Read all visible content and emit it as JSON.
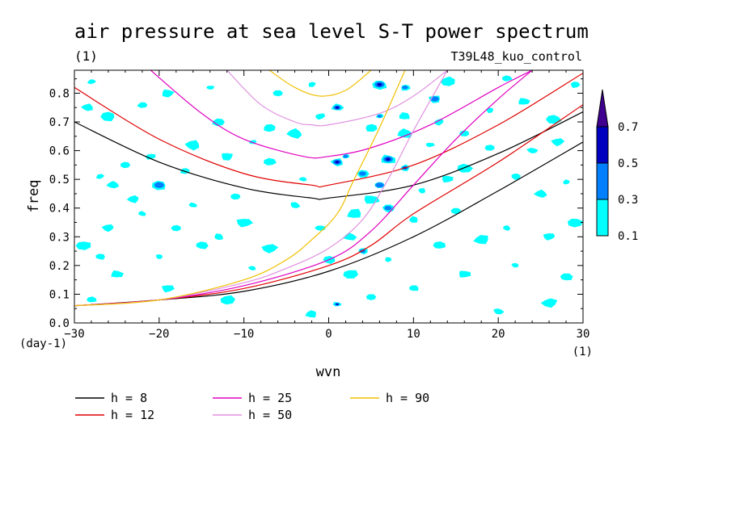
{
  "chart_data": {
    "type": "heatmap",
    "title": "air pressure at sea level S-T power spectrum",
    "subtitle_left": "(1)",
    "subtitle_right": "T39L48_kuo_control",
    "xlabel": "wvn",
    "ylabel": "freq",
    "x_unit_label": "(1)",
    "y_unit_label": "(day-1)",
    "xlim": [
      -30,
      30
    ],
    "ylim": [
      0,
      0.88
    ],
    "x_ticks": [
      -30,
      -20,
      -10,
      0,
      10,
      20,
      30
    ],
    "x_tick_labels": [
      "−30",
      "−20",
      "−10",
      "0",
      "10",
      "20",
      "30"
    ],
    "y_ticks": [
      0,
      0.1,
      0.2,
      0.3,
      0.4,
      0.5,
      0.6,
      0.7,
      0.8
    ],
    "y_tick_labels": [
      "0.0",
      "0.1",
      "0.2",
      "0.3",
      "0.4",
      "0.5",
      "0.6",
      "0.7",
      "0.8"
    ],
    "colorbar": {
      "levels": [
        0.1,
        0.3,
        0.5,
        0.7
      ],
      "labels": [
        "0.1",
        "0.3",
        "0.5",
        "0.7"
      ],
      "colors": [
        "#00ffff",
        "#0080ff",
        "#0000c0",
        "#400090"
      ]
    },
    "curves": [
      {
        "name": "h = 8",
        "h": 8,
        "color": "#000000"
      },
      {
        "name": "h = 12",
        "h": 12,
        "color": "#e00000"
      },
      {
        "name": "h = 25",
        "h": 25,
        "color": "#e000c0"
      },
      {
        "name": "h = 50",
        "h": 50,
        "color": "#e090e0"
      },
      {
        "name": "h = 90",
        "h": 90,
        "color": "#f0c000"
      }
    ],
    "curve_points": {
      "h = 8": {
        "upper": [
          [
            -30,
            0.7
          ],
          [
            -20,
            0.56
          ],
          [
            -10,
            0.47
          ],
          [
            -2,
            0.435
          ],
          [
            0,
            0.435
          ],
          [
            10,
            0.48
          ],
          [
            20,
            0.59
          ],
          [
            30,
            0.735
          ]
        ],
        "lower": [
          [
            -30,
            0.06
          ],
          [
            -20,
            0.08
          ],
          [
            -10,
            0.11
          ],
          [
            0,
            0.18
          ],
          [
            10,
            0.3
          ],
          [
            20,
            0.46
          ],
          [
            30,
            0.63
          ]
        ]
      },
      "h = 12": {
        "upper": [
          [
            -30,
            0.82
          ],
          [
            -20,
            0.64
          ],
          [
            -10,
            0.52
          ],
          [
            -2,
            0.48
          ],
          [
            0,
            0.48
          ],
          [
            10,
            0.55
          ],
          [
            20,
            0.69
          ],
          [
            30,
            0.87
          ]
        ],
        "lower": [
          [
            -30,
            0.06
          ],
          [
            -20,
            0.08
          ],
          [
            -10,
            0.12
          ],
          [
            0,
            0.2
          ],
          [
            5,
            0.27
          ],
          [
            10,
            0.38
          ],
          [
            20,
            0.56
          ],
          [
            30,
            0.76
          ]
        ]
      },
      "h = 25": {
        "upper": [
          [
            -21,
            0.88
          ],
          [
            -15,
            0.73
          ],
          [
            -10,
            0.64
          ],
          [
            -3,
            0.58
          ],
          [
            0,
            0.58
          ],
          [
            5,
            0.61
          ],
          [
            12,
            0.69
          ],
          [
            20,
            0.82
          ],
          [
            24,
            0.88
          ]
        ],
        "lower": [
          [
            -30,
            0.06
          ],
          [
            -20,
            0.08
          ],
          [
            -10,
            0.13
          ],
          [
            0,
            0.22
          ],
          [
            5,
            0.32
          ],
          [
            10,
            0.48
          ],
          [
            15,
            0.64
          ],
          [
            20,
            0.78
          ],
          [
            24,
            0.88
          ]
        ]
      },
      "h = 50": {
        "upper": [
          [
            -12,
            0.88
          ],
          [
            -8,
            0.76
          ],
          [
            -4,
            0.7
          ],
          [
            -2,
            0.69
          ],
          [
            0,
            0.69
          ],
          [
            6,
            0.73
          ],
          [
            10,
            0.79
          ],
          [
            14,
            0.88
          ]
        ],
        "lower": [
          [
            -30,
            0.06
          ],
          [
            -20,
            0.08
          ],
          [
            -10,
            0.14
          ],
          [
            -5,
            0.19
          ],
          [
            0,
            0.26
          ],
          [
            4,
            0.36
          ],
          [
            7,
            0.5
          ],
          [
            10,
            0.67
          ],
          [
            14,
            0.88
          ]
        ]
      },
      "h = 90": {
        "upper": [
          [
            -7,
            0.88
          ],
          [
            -4,
            0.82
          ],
          [
            -1,
            0.79
          ],
          [
            2,
            0.81
          ],
          [
            5,
            0.88
          ]
        ],
        "lower": [
          [
            -30,
            0.06
          ],
          [
            -20,
            0.08
          ],
          [
            -10,
            0.15
          ],
          [
            -5,
            0.22
          ],
          [
            -2,
            0.29
          ],
          [
            1,
            0.38
          ],
          [
            3,
            0.5
          ],
          [
            6,
            0.68
          ],
          [
            9,
            0.88
          ]
        ]
      }
    },
    "blobs": [
      {
        "x": -28,
        "y": 0.84,
        "l": 0
      },
      {
        "x": -28.5,
        "y": 0.75,
        "l": 0
      },
      {
        "x": -26,
        "y": 0.72,
        "l": 0
      },
      {
        "x": -22,
        "y": 0.76,
        "l": 0
      },
      {
        "x": -19,
        "y": 0.8,
        "l": 0
      },
      {
        "x": -14,
        "y": 0.82,
        "l": 0
      },
      {
        "x": -13,
        "y": 0.7,
        "l": 0
      },
      {
        "x": -16,
        "y": 0.62,
        "l": 0
      },
      {
        "x": -21,
        "y": 0.58,
        "l": 0
      },
      {
        "x": -24,
        "y": 0.55,
        "l": 0
      },
      {
        "x": -27,
        "y": 0.51,
        "l": 0
      },
      {
        "x": -25.5,
        "y": 0.48,
        "l": 0
      },
      {
        "x": -20,
        "y": 0.48,
        "l": 1
      },
      {
        "x": -17,
        "y": 0.53,
        "l": 0
      },
      {
        "x": -12,
        "y": 0.58,
        "l": 0
      },
      {
        "x": -9,
        "y": 0.63,
        "l": 0
      },
      {
        "x": -7,
        "y": 0.68,
        "l": 0
      },
      {
        "x": -4,
        "y": 0.66,
        "l": 0
      },
      {
        "x": -1,
        "y": 0.72,
        "l": 0
      },
      {
        "x": -6,
        "y": 0.8,
        "l": 0
      },
      {
        "x": -2,
        "y": 0.83,
        "l": 0
      },
      {
        "x": 1,
        "y": 0.75,
        "l": 2
      },
      {
        "x": 6,
        "y": 0.83,
        "l": 2
      },
      {
        "x": 9,
        "y": 0.82,
        "l": 1
      },
      {
        "x": 12.5,
        "y": 0.78,
        "l": 1
      },
      {
        "x": 6,
        "y": 0.72,
        "l": 1
      },
      {
        "x": 5,
        "y": 0.68,
        "l": 0
      },
      {
        "x": 9,
        "y": 0.66,
        "l": 0
      },
      {
        "x": 13,
        "y": 0.7,
        "l": 0
      },
      {
        "x": 16,
        "y": 0.66,
        "l": 0
      },
      {
        "x": 19,
        "y": 0.74,
        "l": 0
      },
      {
        "x": 23,
        "y": 0.77,
        "l": 0
      },
      {
        "x": 26.5,
        "y": 0.71,
        "l": 0
      },
      {
        "x": 29,
        "y": 0.83,
        "l": 0
      },
      {
        "x": 1,
        "y": 0.56,
        "l": 2
      },
      {
        "x": 2,
        "y": 0.58,
        "l": 1
      },
      {
        "x": 4,
        "y": 0.52,
        "l": 1
      },
      {
        "x": 7,
        "y": 0.57,
        "l": 2
      },
      {
        "x": 9,
        "y": 0.54,
        "l": 2
      },
      {
        "x": 6,
        "y": 0.48,
        "l": 1
      },
      {
        "x": 11,
        "y": 0.46,
        "l": 0
      },
      {
        "x": 14,
        "y": 0.5,
        "l": 0
      },
      {
        "x": 16,
        "y": 0.54,
        "l": 0
      },
      {
        "x": 22,
        "y": 0.51,
        "l": 0
      },
      {
        "x": 25,
        "y": 0.45,
        "l": 0
      },
      {
        "x": 28,
        "y": 0.49,
        "l": 0
      },
      {
        "x": 7,
        "y": 0.4,
        "l": 1
      },
      {
        "x": 5,
        "y": 0.43,
        "l": 0
      },
      {
        "x": 10,
        "y": 0.36,
        "l": 0
      },
      {
        "x": 15,
        "y": 0.39,
        "l": 0
      },
      {
        "x": 21,
        "y": 0.33,
        "l": 0
      },
      {
        "x": 26,
        "y": 0.3,
        "l": 0
      },
      {
        "x": 29,
        "y": 0.35,
        "l": 0
      },
      {
        "x": 4,
        "y": 0.25,
        "l": 1
      },
      {
        "x": 2.5,
        "y": 0.3,
        "l": 0
      },
      {
        "x": 7,
        "y": 0.22,
        "l": 0
      },
      {
        "x": 0,
        "y": 0.22,
        "l": 0
      },
      {
        "x": -10,
        "y": 0.35,
        "l": 0
      },
      {
        "x": -13,
        "y": 0.3,
        "l": 0
      },
      {
        "x": -18,
        "y": 0.33,
        "l": 0
      },
      {
        "x": -22,
        "y": 0.38,
        "l": 0
      },
      {
        "x": -26,
        "y": 0.33,
        "l": 0
      },
      {
        "x": -29,
        "y": 0.27,
        "l": 0
      },
      {
        "x": -27,
        "y": 0.23,
        "l": 0
      },
      {
        "x": -25,
        "y": 0.17,
        "l": 0
      },
      {
        "x": -20,
        "y": 0.23,
        "l": 0
      },
      {
        "x": -15,
        "y": 0.27,
        "l": 0
      },
      {
        "x": -7,
        "y": 0.26,
        "l": 0
      },
      {
        "x": -4,
        "y": 0.41,
        "l": 0
      },
      {
        "x": -11,
        "y": 0.44,
        "l": 0
      },
      {
        "x": -16,
        "y": 0.41,
        "l": 0
      },
      {
        "x": -23,
        "y": 0.43,
        "l": 0
      },
      {
        "x": 2.5,
        "y": 0.17,
        "l": 0
      },
      {
        "x": 10,
        "y": 0.12,
        "l": 0
      },
      {
        "x": 16,
        "y": 0.17,
        "l": 0
      },
      {
        "x": 22,
        "y": 0.2,
        "l": 0
      },
      {
        "x": 28,
        "y": 0.16,
        "l": 0
      },
      {
        "x": 26,
        "y": 0.07,
        "l": 0
      },
      {
        "x": 20,
        "y": 0.04,
        "l": 0
      },
      {
        "x": 5,
        "y": 0.09,
        "l": 0
      },
      {
        "x": 1,
        "y": 0.065,
        "l": 2
      },
      {
        "x": -2,
        "y": 0.03,
        "l": 0
      },
      {
        "x": -12,
        "y": 0.08,
        "l": 0
      },
      {
        "x": -28,
        "y": 0.08,
        "l": 0
      },
      {
        "x": -19,
        "y": 0.12,
        "l": 0
      },
      {
        "x": -9,
        "y": 0.19,
        "l": 0
      },
      {
        "x": 13,
        "y": 0.27,
        "l": 0
      },
      {
        "x": 18,
        "y": 0.29,
        "l": 0
      },
      {
        "x": 24,
        "y": 0.6,
        "l": 0
      },
      {
        "x": 19,
        "y": 0.61,
        "l": 0
      },
      {
        "x": 12,
        "y": 0.62,
        "l": 0
      },
      {
        "x": 9,
        "y": 0.72,
        "l": 0
      },
      {
        "x": 14,
        "y": 0.84,
        "l": 0
      },
      {
        "x": 21,
        "y": 0.85,
        "l": 0
      },
      {
        "x": 27,
        "y": 0.63,
        "l": 0
      },
      {
        "x": -3,
        "y": 0.5,
        "l": 0
      },
      {
        "x": -7,
        "y": 0.56,
        "l": 0
      },
      {
        "x": 3,
        "y": 0.38,
        "l": 0
      },
      {
        "x": -1,
        "y": 0.33,
        "l": 0
      }
    ]
  }
}
